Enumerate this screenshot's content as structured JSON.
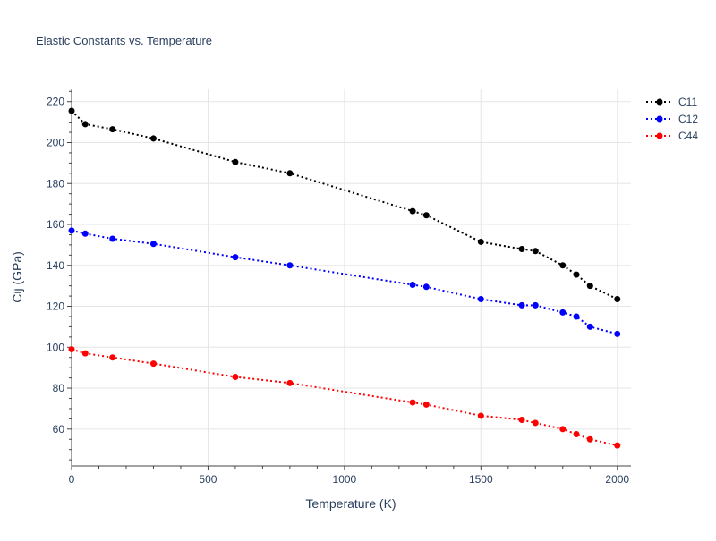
{
  "chart_data": {
    "type": "line",
    "title": "Elastic Constants vs. Temperature",
    "xlabel": "Temperature (K)",
    "ylabel": "Cij (GPa)",
    "xlim": [
      0,
      2050
    ],
    "ylim": [
      42,
      226
    ],
    "x_ticks": [
      0,
      500,
      1000,
      1500,
      2000
    ],
    "y_ticks": [
      60,
      80,
      100,
      120,
      140,
      160,
      180,
      200,
      220
    ],
    "grid": true,
    "legend_position": "top-right",
    "line_style": "dotted",
    "series": [
      {
        "name": "C11",
        "color": "#000000",
        "x": [
          0,
          50,
          150,
          300,
          600,
          800,
          1250,
          1300,
          1500,
          1650,
          1700,
          1800,
          1850,
          1900,
          2000
        ],
        "y": [
          215.5,
          209,
          206.5,
          202,
          190.5,
          185,
          166.5,
          164.5,
          151.5,
          148,
          147,
          140,
          135.5,
          130,
          123.5
        ]
      },
      {
        "name": "C12",
        "color": "#0000ff",
        "x": [
          0,
          50,
          150,
          300,
          600,
          800,
          1250,
          1300,
          1500,
          1650,
          1700,
          1800,
          1850,
          1900,
          2000
        ],
        "y": [
          157,
          155.5,
          153,
          150.5,
          144,
          140,
          130.5,
          129.5,
          123.5,
          120.5,
          120.5,
          117,
          115,
          110,
          106.5
        ]
      },
      {
        "name": "C44",
        "color": "#ff0000",
        "x": [
          0,
          50,
          150,
          300,
          600,
          800,
          1250,
          1300,
          1500,
          1650,
          1700,
          1800,
          1850,
          1900,
          2000
        ],
        "y": [
          99,
          97,
          95,
          92,
          85.5,
          82.5,
          73,
          72,
          66.5,
          64.5,
          63,
          60,
          57.5,
          55,
          52
        ]
      }
    ]
  }
}
